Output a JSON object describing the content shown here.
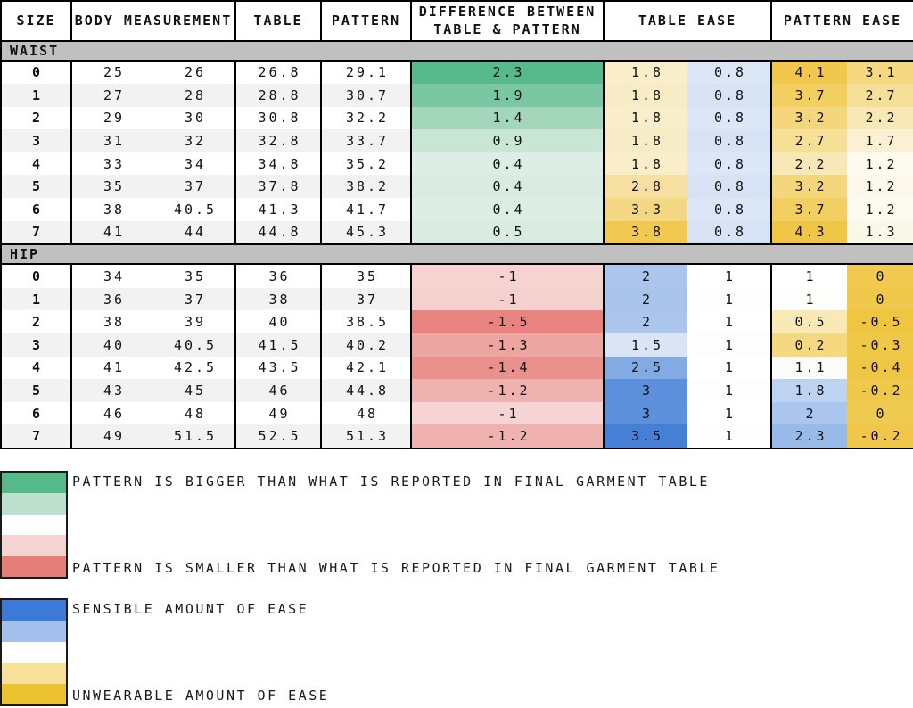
{
  "chart_data": {
    "type": "table",
    "columns": [
      {
        "label": "SIZE",
        "span": 1
      },
      {
        "label": "BODY MEASUREMENT",
        "span": 2
      },
      {
        "label": "TABLE",
        "span": 1
      },
      {
        "label": "PATTERN",
        "span": 1
      },
      {
        "label": "DIFFERENCE BETWEEN TABLE & PATTERN",
        "span": 1
      },
      {
        "label": "TABLE EASE",
        "span": 2
      },
      {
        "label": "PATTERN EASE",
        "span": 2
      }
    ],
    "sections": [
      {
        "label": "WAIST",
        "rows": [
          {
            "size": "0",
            "body": [
              "25",
              "26"
            ],
            "table": "26.8",
            "pattern": "29.1",
            "diff": {
              "v": "2.3",
              "bg": "#57b98c"
            },
            "table_ease": [
              {
                "v": "1.8",
                "bg": "#faeeca"
              },
              {
                "v": "0.8",
                "bg": "#dbe6f7"
              }
            ],
            "pattern_ease": [
              {
                "v": "4.1",
                "bg": "#f1c84b"
              },
              {
                "v": "3.1",
                "bg": "#f5d980"
              }
            ]
          },
          {
            "size": "1",
            "body": [
              "27",
              "28"
            ],
            "table": "28.8",
            "pattern": "30.7",
            "diff": {
              "v": "1.9",
              "bg": "#7bc7a3"
            },
            "table_ease": [
              {
                "v": "1.8",
                "bg": "#f8ecc6"
              },
              {
                "v": "0.8",
                "bg": "#d7e2f5"
              }
            ],
            "pattern_ease": [
              {
                "v": "3.7",
                "bg": "#f3cf62"
              },
              {
                "v": "2.7",
                "bg": "#f6e098"
              }
            ]
          },
          {
            "size": "2",
            "body": [
              "29",
              "30"
            ],
            "table": "30.8",
            "pattern": "32.2",
            "diff": {
              "v": "1.4",
              "bg": "#a3d6bb"
            },
            "table_ease": [
              {
                "v": "1.8",
                "bg": "#faeeca"
              },
              {
                "v": "0.8",
                "bg": "#dbe6f7"
              }
            ],
            "pattern_ease": [
              {
                "v": "3.2",
                "bg": "#f4d77d"
              },
              {
                "v": "2.2",
                "bg": "#f8e8b6"
              }
            ]
          },
          {
            "size": "3",
            "body": [
              "31",
              "32"
            ],
            "table": "32.8",
            "pattern": "33.7",
            "diff": {
              "v": "0.9",
              "bg": "#c9e6d5"
            },
            "table_ease": [
              {
                "v": "1.8",
                "bg": "#f8ecc6"
              },
              {
                "v": "0.8",
                "bg": "#d7e2f5"
              }
            ],
            "pattern_ease": [
              {
                "v": "2.7",
                "bg": "#f6e095"
              },
              {
                "v": "1.7",
                "bg": "#fbf0d1"
              }
            ]
          },
          {
            "size": "4",
            "body": [
              "33",
              "34"
            ],
            "table": "34.8",
            "pattern": "35.2",
            "diff": {
              "v": "0.4",
              "bg": "#ddeee6"
            },
            "table_ease": [
              {
                "v": "1.8",
                "bg": "#faeeca"
              },
              {
                "v": "0.8",
                "bg": "#dbe6f7"
              }
            ],
            "pattern_ease": [
              {
                "v": "2.2",
                "bg": "#f9e8b7"
              },
              {
                "v": "1.2",
                "bg": "#fdfbf0"
              }
            ]
          },
          {
            "size": "5",
            "body": [
              "35",
              "37"
            ],
            "table": "37.8",
            "pattern": "38.2",
            "diff": {
              "v": "0.4",
              "bg": "#daece2"
            },
            "table_ease": [
              {
                "v": "2.8",
                "bg": "#f6dfa0"
              },
              {
                "v": "0.8",
                "bg": "#d7e2f5"
              }
            ],
            "pattern_ease": [
              {
                "v": "3.2",
                "bg": "#f4d77d"
              },
              {
                "v": "1.2",
                "bg": "#fcf9ea"
              }
            ]
          },
          {
            "size": "6",
            "body": [
              "38",
              "40.5"
            ],
            "table": "41.3",
            "pattern": "41.7",
            "diff": {
              "v": "0.4",
              "bg": "#ddeee6"
            },
            "table_ease": [
              {
                "v": "3.3",
                "bg": "#f4d783"
              },
              {
                "v": "0.8",
                "bg": "#dbe6f7"
              }
            ],
            "pattern_ease": [
              {
                "v": "3.7",
                "bg": "#f3cf62"
              },
              {
                "v": "1.2",
                "bg": "#fdfbf0"
              }
            ]
          },
          {
            "size": "7",
            "body": [
              "41",
              "44"
            ],
            "table": "44.8",
            "pattern": "45.3",
            "diff": {
              "v": "0.5",
              "bg": "#daece1"
            },
            "table_ease": [
              {
                "v": "3.8",
                "bg": "#f1c850"
              },
              {
                "v": "0.8",
                "bg": "#d7e2f5"
              }
            ],
            "pattern_ease": [
              {
                "v": "4.3",
                "bg": "#f0c646"
              },
              {
                "v": "1.3",
                "bg": "#fcf8e8"
              }
            ]
          }
        ]
      },
      {
        "label": "HIP",
        "rows": [
          {
            "size": "0",
            "body": [
              "34",
              "35"
            ],
            "table": "36",
            "pattern": "35",
            "diff": {
              "v": "-1",
              "bg": "#f6d2d1"
            },
            "table_ease": [
              {
                "v": "2",
                "bg": "#abc5ec"
              },
              {
                "v": "1",
                "bg": "#ffffff"
              }
            ],
            "pattern_ease": [
              {
                "v": "1",
                "bg": "#ffffff"
              },
              {
                "v": "0",
                "bg": "#f0c94e"
              }
            ]
          },
          {
            "size": "1",
            "body": [
              "36",
              "37"
            ],
            "table": "38",
            "pattern": "37",
            "diff": {
              "v": "-1",
              "bg": "#f4d0cf"
            },
            "table_ease": [
              {
                "v": "2",
                "bg": "#a9c4eb"
              },
              {
                "v": "1",
                "bg": "#fdfdfd"
              }
            ],
            "pattern_ease": [
              {
                "v": "1",
                "bg": "#fdfdfc"
              },
              {
                "v": "0",
                "bg": "#efc84c"
              }
            ]
          },
          {
            "size": "2",
            "body": [
              "38",
              "39"
            ],
            "table": "40",
            "pattern": "38.5",
            "diff": {
              "v": "-1.5",
              "bg": "#e8837f"
            },
            "table_ease": [
              {
                "v": "2",
                "bg": "#abc5ec"
              },
              {
                "v": "1",
                "bg": "#ffffff"
              }
            ],
            "pattern_ease": [
              {
                "v": "0.5",
                "bg": "#f9e9b5"
              },
              {
                "v": "-0.5",
                "bg": "#f0c640"
              }
            ]
          },
          {
            "size": "3",
            "body": [
              "40",
              "40.5"
            ],
            "table": "41.5",
            "pattern": "40.2",
            "diff": {
              "v": "-1.3",
              "bg": "#eda5a2"
            },
            "table_ease": [
              {
                "v": "1.5",
                "bg": "#d9e5f7"
              },
              {
                "v": "1",
                "bg": "#fdfdfd"
              }
            ],
            "pattern_ease": [
              {
                "v": "0.2",
                "bg": "#f5d981"
              },
              {
                "v": "-0.3",
                "bg": "#f0c847"
              }
            ]
          },
          {
            "size": "4",
            "body": [
              "41",
              "42.5"
            ],
            "table": "43.5",
            "pattern": "42.1",
            "diff": {
              "v": "-1.4",
              "bg": "#ea918e"
            },
            "table_ease": [
              {
                "v": "2.5",
                "bg": "#82abe3"
              },
              {
                "v": "1",
                "bg": "#ffffff"
              }
            ],
            "pattern_ease": [
              {
                "v": "1.1",
                "bg": "#fbfbf9"
              },
              {
                "v": "-0.4",
                "bg": "#f0c645"
              }
            ]
          },
          {
            "size": "5",
            "body": [
              "43",
              "45"
            ],
            "table": "46",
            "pattern": "44.8",
            "diff": {
              "v": "-1.2",
              "bg": "#efb2af"
            },
            "table_ease": [
              {
                "v": "3",
                "bg": "#5c90dc"
              },
              {
                "v": "1",
                "bg": "#fdfdfd"
              }
            ],
            "pattern_ease": [
              {
                "v": "1.8",
                "bg": "#bdd3f1"
              },
              {
                "v": "-0.2",
                "bg": "#f0c94b"
              }
            ]
          },
          {
            "size": "6",
            "body": [
              "46",
              "48"
            ],
            "table": "49",
            "pattern": "48",
            "diff": {
              "v": "-1",
              "bg": "#f6d4d3"
            },
            "table_ease": [
              {
                "v": "3",
                "bg": "#5e91dc"
              },
              {
                "v": "1",
                "bg": "#ffffff"
              }
            ],
            "pattern_ease": [
              {
                "v": "2",
                "bg": "#aac6ee"
              },
              {
                "v": "0",
                "bg": "#efca50"
              }
            ]
          },
          {
            "size": "7",
            "body": [
              "49",
              "51.5"
            ],
            "table": "52.5",
            "pattern": "51.3",
            "diff": {
              "v": "-1.2",
              "bg": "#efb2af"
            },
            "table_ease": [
              {
                "v": "3.5",
                "bg": "#467fd6"
              },
              {
                "v": "1",
                "bg": "#fdfdfd"
              }
            ],
            "pattern_ease": [
              {
                "v": "2.3",
                "bg": "#98bae9"
              },
              {
                "v": "-0.2",
                "bg": "#f0c74a"
              }
            ]
          }
        ]
      }
    ],
    "legends": [
      {
        "swatches": [
          "#55b98a",
          "#bbe0cd",
          "#ffffff",
          "#f5d3d0",
          "#e57e76"
        ],
        "top_label": "PATTERN IS BIGGER THAN WHAT IS REPORTED IN FINAL GARMENT TABLE",
        "bottom_label": "PATTERN IS SMALLER THAN WHAT IS REPORTED IN FINAL GARMENT TABLE"
      },
      {
        "swatches": [
          "#3d79d7",
          "#a3c0ec",
          "#ffffff",
          "#f6e09a",
          "#ecc231"
        ],
        "top_label": "SENSIBLE AMOUNT OF EASE",
        "bottom_label": "UNWEARABLE AMOUNT OF EASE"
      }
    ],
    "colors": {
      "section_band": "#c0c0c0",
      "stripe_even": "#ffffff",
      "stripe_odd": "#f2f2f2",
      "border": "#000000"
    }
  }
}
